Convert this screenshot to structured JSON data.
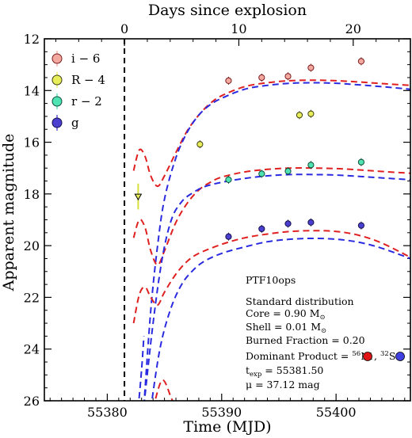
{
  "chart_data": {
    "type": "line",
    "xlabel": "Time (MJD)",
    "x2label": "Days since explosion",
    "ylabel": "Apparent magnitude",
    "xlim": [
      55374.5,
      55406.5
    ],
    "ylim": [
      26,
      12
    ],
    "y_inverted": true,
    "x_ticks": [
      55380,
      55390,
      55400
    ],
    "x_tick_labels": [
      "55380",
      "55390",
      "55400"
    ],
    "x2_ticks": [
      0,
      10,
      20
    ],
    "x2_tick_labels": [
      "0",
      "10",
      "20"
    ],
    "y_ticks": [
      12,
      14,
      16,
      18,
      20,
      22,
      24,
      26
    ],
    "y_tick_labels": [
      "12",
      "14",
      "16",
      "18",
      "20",
      "22",
      "24",
      "26"
    ],
    "explosion_line": {
      "x": 55381.5,
      "style": "dashed",
      "color": "#000000"
    },
    "legend": {
      "placement": "top-left",
      "entries": [
        {
          "label": "i − 6",
          "color": "#f4a9a0",
          "edge": "#7a1c1c"
        },
        {
          "label": "R − 4",
          "color": "#e8ee5a",
          "edge": "#3d3d10"
        },
        {
          "label": "r − 2",
          "color": "#4fe3b4",
          "edge": "#0f4d38"
        },
        {
          "label": "g",
          "color": "#4b3fd0",
          "edge": "#14104a"
        }
      ]
    },
    "series": [
      {
        "name": "i − 6",
        "color": "#f4a9a0",
        "points": [
          [
            55390.6,
            13.62
          ],
          [
            55393.5,
            13.5
          ],
          [
            55395.8,
            13.45
          ],
          [
            55397.8,
            13.12
          ],
          [
            55402.2,
            12.87
          ]
        ]
      },
      {
        "name": "R − 4",
        "color": "#e8ee5a",
        "points": [
          [
            55388.1,
            16.08
          ],
          [
            55396.8,
            14.95
          ],
          [
            55397.8,
            14.9
          ]
        ]
      },
      {
        "name": "r − 2",
        "color": "#4fe3b4",
        "points": [
          [
            55390.6,
            17.45
          ],
          [
            55393.5,
            17.22
          ],
          [
            55395.8,
            17.12
          ],
          [
            55397.8,
            16.88
          ],
          [
            55402.2,
            16.77
          ]
        ]
      },
      {
        "name": "g",
        "color": "#4b3fd0",
        "points": [
          [
            55390.6,
            19.65
          ],
          [
            55393.5,
            19.35
          ],
          [
            55395.8,
            19.15
          ],
          [
            55397.8,
            19.1
          ],
          [
            55402.2,
            19.22
          ]
        ]
      }
    ],
    "upper_limits": [
      {
        "x": 55382.7,
        "y": 18.1
      }
    ],
    "error_bar": {
      "x": 55382.7,
      "y_low": 17.6,
      "y_high": 18.6,
      "color": "#d8de3a"
    },
    "model_curves": [
      {
        "family": "56Ni",
        "color": "#e02020",
        "band": "i",
        "points": [
          [
            55382.3,
            17.1
          ],
          [
            55382.8,
            16.3
          ],
          [
            55383.3,
            16.55
          ],
          [
            55383.8,
            17.3
          ],
          [
            55384.4,
            17.7
          ],
          [
            55385,
            17.3
          ],
          [
            55386,
            16.4
          ],
          [
            55387,
            15.55
          ],
          [
            55388,
            14.95
          ],
          [
            55389,
            14.5
          ],
          [
            55390,
            14.2
          ],
          [
            55392,
            13.85
          ],
          [
            55394,
            13.7
          ],
          [
            55396,
            13.62
          ],
          [
            55398,
            13.6
          ],
          [
            55400,
            13.62
          ],
          [
            55402,
            13.67
          ],
          [
            55404,
            13.73
          ],
          [
            55406.5,
            13.8
          ]
        ]
      },
      {
        "family": "32S",
        "color": "#2a2ae0",
        "band": "i",
        "points": [
          [
            55383.2,
            26.2
          ],
          [
            55383.8,
            22.5
          ],
          [
            55384.4,
            20.0
          ],
          [
            55385,
            18.2
          ],
          [
            55386,
            16.6
          ],
          [
            55387,
            15.6
          ],
          [
            55388,
            14.95
          ],
          [
            55389,
            14.55
          ],
          [
            55390,
            14.3
          ],
          [
            55392,
            13.95
          ],
          [
            55394,
            13.8
          ],
          [
            55396,
            13.72
          ],
          [
            55398,
            13.7
          ],
          [
            55400,
            13.72
          ],
          [
            55402,
            13.78
          ],
          [
            55404,
            13.85
          ],
          [
            55406.5,
            13.95
          ]
        ]
      },
      {
        "family": "56Ni",
        "color": "#e02020",
        "band": "r",
        "points": [
          [
            55382.3,
            19.7
          ],
          [
            55382.8,
            19.0
          ],
          [
            55383.3,
            19.3
          ],
          [
            55383.8,
            20.2
          ],
          [
            55384.4,
            20.75
          ],
          [
            55385,
            20.2
          ],
          [
            55386,
            19.1
          ],
          [
            55387,
            18.35
          ],
          [
            55388,
            17.85
          ],
          [
            55389,
            17.55
          ],
          [
            55390,
            17.35
          ],
          [
            55392,
            17.15
          ],
          [
            55394,
            17.05
          ],
          [
            55396,
            17.0
          ],
          [
            55398,
            17.0
          ],
          [
            55400,
            17.02
          ],
          [
            55402,
            17.07
          ],
          [
            55404,
            17.13
          ],
          [
            55406.5,
            17.2
          ]
        ]
      },
      {
        "family": "32S",
        "color": "#2a2ae0",
        "band": "r",
        "points": [
          [
            55383.2,
            26.2
          ],
          [
            55384,
            23.0
          ],
          [
            55384.8,
            20.5
          ],
          [
            55385.6,
            19.0
          ],
          [
            55386.5,
            18.3
          ],
          [
            55387.5,
            17.95
          ],
          [
            55388.5,
            17.72
          ],
          [
            55390,
            17.55
          ],
          [
            55392,
            17.4
          ],
          [
            55394,
            17.3
          ],
          [
            55396,
            17.25
          ],
          [
            55398,
            17.25
          ],
          [
            55400,
            17.27
          ],
          [
            55402,
            17.32
          ],
          [
            55404,
            17.38
          ],
          [
            55406.5,
            17.45
          ]
        ]
      },
      {
        "family": "56Ni",
        "color": "#e02020",
        "band": "g",
        "points": [
          [
            55382.3,
            23.0
          ],
          [
            55382.8,
            21.9
          ],
          [
            55383.3,
            21.6
          ],
          [
            55383.8,
            22.0
          ],
          [
            55384.4,
            22.3
          ],
          [
            55385,
            21.8
          ],
          [
            55386,
            21.1
          ],
          [
            55387,
            20.6
          ],
          [
            55388,
            20.3
          ],
          [
            55390,
            19.95
          ],
          [
            55392,
            19.7
          ],
          [
            55394,
            19.55
          ],
          [
            55396,
            19.45
          ],
          [
            55398,
            19.42
          ],
          [
            55400,
            19.45
          ],
          [
            55402,
            19.6
          ],
          [
            55404,
            19.9
          ],
          [
            55406.5,
            20.45
          ]
        ]
      },
      {
        "family": "32S",
        "color": "#2a2ae0",
        "band": "g",
        "points": [
          [
            55383.8,
            26.3
          ],
          [
            55384.6,
            24.0
          ],
          [
            55385.5,
            22.5
          ],
          [
            55386.5,
            21.5
          ],
          [
            55387.5,
            20.95
          ],
          [
            55388.5,
            20.6
          ],
          [
            55390,
            20.3
          ],
          [
            55392,
            20.05
          ],
          [
            55394,
            19.85
          ],
          [
            55396,
            19.75
          ],
          [
            55398,
            19.72
          ],
          [
            55400,
            19.75
          ],
          [
            55402,
            19.87
          ],
          [
            55404,
            20.1
          ],
          [
            55406.5,
            20.5
          ]
        ]
      },
      {
        "family": "56Ni",
        "color": "#e02020",
        "band": "faint",
        "points": [
          [
            55384.0,
            26.3
          ],
          [
            55384.8,
            25.2
          ],
          [
            55385.6,
            25.9
          ],
          [
            55386.0,
            26.3
          ]
        ]
      },
      {
        "family": "32S",
        "color": "#2a2ae0",
        "band": "faint",
        "points": [
          [
            55382.7,
            26.3
          ],
          [
            55383.0,
            24.8
          ],
          [
            55383.2,
            23.5
          ]
        ]
      }
    ],
    "annotations": {
      "object": "PTF10ops",
      "distribution": "Standard distribution",
      "core": "Core = 0.90 M",
      "shell": "Shell = 0.01 M",
      "burned": "Burned Fraction = 0.20",
      "dominant_prefix": "Dominant Product = ",
      "ni_mass_number": "56",
      "ni_symbol": "Ni",
      "s_mass_number": "32",
      "s_symbol": "S",
      "comma": ",",
      "texp_prefix": "t",
      "texp_sub": "exp",
      "texp_value": " = 55381.50",
      "mu": "μ = 37.12 mag",
      "sun_sub": "⊙",
      "ni_color": "#e01515",
      "s_color": "#4040e0"
    }
  }
}
